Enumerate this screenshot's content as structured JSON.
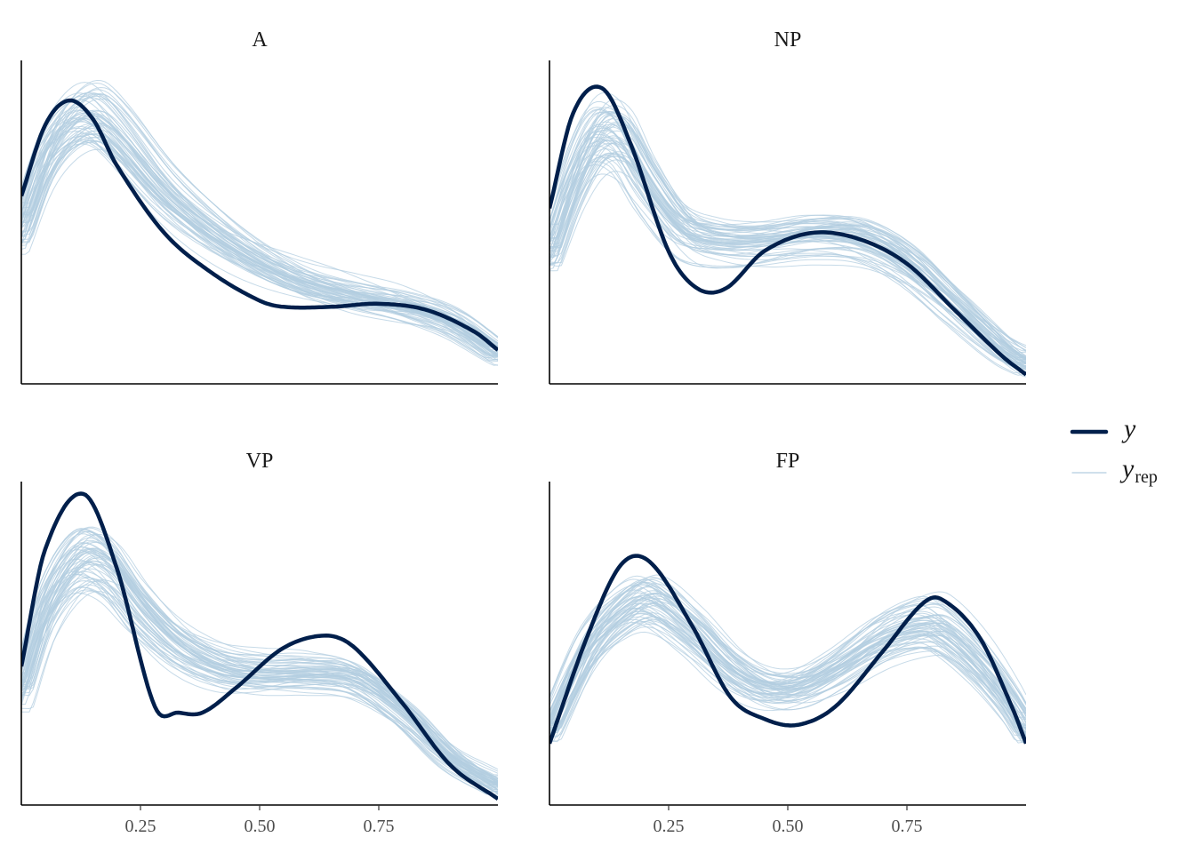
{
  "chart_data": {
    "type": "line",
    "description_kind": "posterior predictive density overlay",
    "x_range": [
      0,
      1
    ],
    "x_ticks": [
      "0.25",
      "0.50",
      "0.75"
    ],
    "x_tick_values": [
      0.25,
      0.5,
      0.75
    ],
    "grid": false,
    "legend_placement": "right",
    "legend": {
      "y_label": "y",
      "yrep_base": "y",
      "yrep_sub": "rep"
    },
    "colors": {
      "y": "#011f4b",
      "yrep": "#b3cde0"
    },
    "n_replicates": 60,
    "panels": [
      {
        "title": "A",
        "ymax": 1.05,
        "y": [
          [
            0.0,
            0.61
          ],
          [
            0.05,
            0.84
          ],
          [
            0.1,
            0.92
          ],
          [
            0.15,
            0.86
          ],
          [
            0.2,
            0.71
          ],
          [
            0.3,
            0.49
          ],
          [
            0.4,
            0.36
          ],
          [
            0.5,
            0.27
          ],
          [
            0.55,
            0.25
          ],
          [
            0.65,
            0.25
          ],
          [
            0.75,
            0.26
          ],
          [
            0.85,
            0.24
          ],
          [
            0.95,
            0.17
          ],
          [
            1.0,
            0.11
          ]
        ],
        "yrep_mean": [
          [
            0.0,
            0.5
          ],
          [
            0.05,
            0.72
          ],
          [
            0.1,
            0.83
          ],
          [
            0.15,
            0.86
          ],
          [
            0.2,
            0.8
          ],
          [
            0.3,
            0.62
          ],
          [
            0.4,
            0.49
          ],
          [
            0.5,
            0.39
          ],
          [
            0.6,
            0.32
          ],
          [
            0.7,
            0.28
          ],
          [
            0.8,
            0.25
          ],
          [
            0.9,
            0.2
          ],
          [
            1.0,
            0.1
          ]
        ]
      },
      {
        "title": "NP",
        "ymax": 1.05,
        "y": [
          [
            0.0,
            0.57
          ],
          [
            0.05,
            0.88
          ],
          [
            0.11,
            0.96
          ],
          [
            0.17,
            0.78
          ],
          [
            0.25,
            0.43
          ],
          [
            0.31,
            0.31
          ],
          [
            0.37,
            0.31
          ],
          [
            0.45,
            0.43
          ],
          [
            0.55,
            0.49
          ],
          [
            0.65,
            0.47
          ],
          [
            0.75,
            0.39
          ],
          [
            0.85,
            0.24
          ],
          [
            0.95,
            0.09
          ],
          [
            1.0,
            0.03
          ]
        ],
        "yrep_mean": [
          [
            0.0,
            0.43
          ],
          [
            0.05,
            0.66
          ],
          [
            0.1,
            0.8
          ],
          [
            0.15,
            0.79
          ],
          [
            0.2,
            0.66
          ],
          [
            0.28,
            0.5
          ],
          [
            0.36,
            0.46
          ],
          [
            0.45,
            0.46
          ],
          [
            0.55,
            0.48
          ],
          [
            0.65,
            0.47
          ],
          [
            0.75,
            0.39
          ],
          [
            0.85,
            0.25
          ],
          [
            0.95,
            0.11
          ],
          [
            1.0,
            0.06
          ]
        ]
      },
      {
        "title": "VP",
        "ymax": 1.05,
        "y": [
          [
            0.0,
            0.45
          ],
          [
            0.05,
            0.83
          ],
          [
            0.13,
            1.01
          ],
          [
            0.2,
            0.77
          ],
          [
            0.28,
            0.32
          ],
          [
            0.33,
            0.3
          ],
          [
            0.38,
            0.3
          ],
          [
            0.45,
            0.38
          ],
          [
            0.55,
            0.51
          ],
          [
            0.64,
            0.55
          ],
          [
            0.7,
            0.51
          ],
          [
            0.8,
            0.33
          ],
          [
            0.9,
            0.13
          ],
          [
            1.0,
            0.02
          ]
        ],
        "yrep_mean": [
          [
            0.0,
            0.38
          ],
          [
            0.05,
            0.64
          ],
          [
            0.12,
            0.8
          ],
          [
            0.18,
            0.78
          ],
          [
            0.25,
            0.64
          ],
          [
            0.33,
            0.52
          ],
          [
            0.42,
            0.45
          ],
          [
            0.5,
            0.43
          ],
          [
            0.6,
            0.43
          ],
          [
            0.7,
            0.41
          ],
          [
            0.8,
            0.3
          ],
          [
            0.9,
            0.15
          ],
          [
            1.0,
            0.06
          ]
        ]
      },
      {
        "title": "FP",
        "ymax": 1.05,
        "y": [
          [
            0.0,
            0.2
          ],
          [
            0.08,
            0.55
          ],
          [
            0.15,
            0.78
          ],
          [
            0.21,
            0.79
          ],
          [
            0.3,
            0.58
          ],
          [
            0.38,
            0.35
          ],
          [
            0.45,
            0.28
          ],
          [
            0.52,
            0.26
          ],
          [
            0.6,
            0.32
          ],
          [
            0.7,
            0.5
          ],
          [
            0.78,
            0.65
          ],
          [
            0.82,
            0.67
          ],
          [
            0.9,
            0.55
          ],
          [
            0.97,
            0.32
          ],
          [
            1.0,
            0.2
          ]
        ],
        "yrep_mean": [
          [
            0.0,
            0.24
          ],
          [
            0.08,
            0.5
          ],
          [
            0.15,
            0.62
          ],
          [
            0.21,
            0.66
          ],
          [
            0.3,
            0.56
          ],
          [
            0.38,
            0.44
          ],
          [
            0.45,
            0.38
          ],
          [
            0.52,
            0.38
          ],
          [
            0.6,
            0.44
          ],
          [
            0.7,
            0.54
          ],
          [
            0.78,
            0.58
          ],
          [
            0.82,
            0.57
          ],
          [
            0.9,
            0.46
          ],
          [
            0.97,
            0.32
          ],
          [
            1.0,
            0.24
          ]
        ]
      }
    ]
  }
}
